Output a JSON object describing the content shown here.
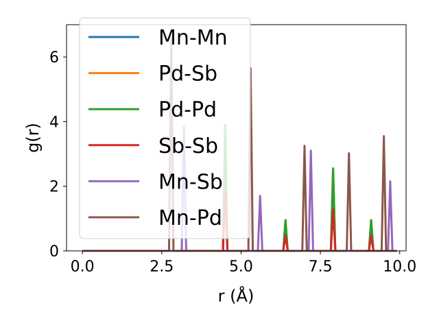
{
  "chart_data": {
    "type": "line",
    "title": "",
    "xlabel": "r (Å)",
    "ylabel": "g(r)",
    "xlim": [
      -0.5,
      10.2
    ],
    "ylim": [
      0,
      7
    ],
    "xticks": [
      0.0,
      2.5,
      5.0,
      7.5,
      10.0
    ],
    "xtick_labels": [
      "0.0",
      "2.5",
      "5.0",
      "7.5",
      "10.0"
    ],
    "yticks": [
      0,
      2,
      4,
      6
    ],
    "ytick_labels": [
      "0",
      "2",
      "4",
      "6"
    ],
    "grid": false,
    "legend_position": "upper-left",
    "series": [
      {
        "name": "Mn-Mn",
        "color": "#1f77b4",
        "peaks": [
          [
            4.5,
            3.9
          ],
          [
            6.4,
            0.95
          ],
          [
            7.9,
            2.55
          ],
          [
            9.1,
            0.95
          ]
        ]
      },
      {
        "name": "Pd-Sb",
        "color": "#ff7f0e",
        "peaks": [
          [
            4.5,
            3.9
          ],
          [
            6.4,
            0.95
          ],
          [
            7.9,
            2.55
          ],
          [
            9.1,
            0.95
          ]
        ]
      },
      {
        "name": "Pd-Pd",
        "color": "#2ca02c",
        "peaks": [
          [
            4.5,
            3.9
          ],
          [
            6.4,
            0.95
          ],
          [
            7.9,
            2.55
          ],
          [
            9.1,
            0.95
          ]
        ]
      },
      {
        "name": "Sb-Sb",
        "color": "#d62728",
        "peaks": [
          [
            4.5,
            1.9
          ],
          [
            6.4,
            0.48
          ],
          [
            7.9,
            1.28
          ],
          [
            9.1,
            0.48
          ]
        ]
      },
      {
        "name": "Mn-Sb",
        "color": "#9467bd",
        "peaks": [
          [
            3.2,
            3.85
          ],
          [
            5.6,
            1.7
          ],
          [
            7.2,
            3.1
          ],
          [
            9.7,
            2.15
          ]
        ]
      },
      {
        "name": "Mn-Pd",
        "color": "#8c564b",
        "peaks": [
          [
            2.8,
            6.6
          ],
          [
            5.3,
            5.65
          ],
          [
            7.0,
            3.25
          ],
          [
            8.4,
            3.02
          ],
          [
            9.5,
            3.55
          ]
        ]
      }
    ]
  }
}
